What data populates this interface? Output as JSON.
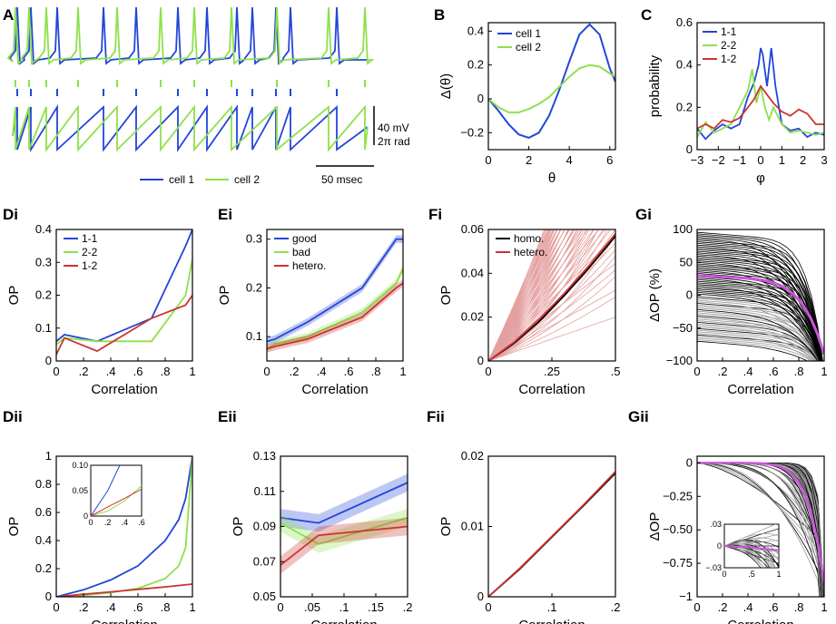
{
  "colors": {
    "blue": "#2346d8",
    "green": "#8ee04c",
    "red": "#cc3333",
    "black": "#000000",
    "gray": "#9a9a9a",
    "magenta": "#cc55dd",
    "pink": "#e4a0a0"
  },
  "chart_data": [
    {
      "panel": "A",
      "type": "line",
      "title": "",
      "series": [
        {
          "name": "cell 1",
          "color": "blue",
          "spike_times_ms": [
            5,
            20,
            49,
            100,
            136,
            182,
            214,
            247,
            264,
            290,
            306,
            357
          ]
        },
        {
          "name": "cell 2",
          "color": "green",
          "spike_times_ms": [
            3,
            18,
            37,
            72,
            115,
            163,
            200,
            241,
            291,
            348,
            388
          ]
        }
      ],
      "scale": {
        "voltage": "40 mV",
        "phase": "2π rad",
        "time": "50 msec"
      }
    },
    {
      "panel": "B",
      "type": "line",
      "xlabel": "θ",
      "ylabel": "Δ(θ)",
      "xlim": [
        0,
        6.28
      ],
      "ylim": [
        -0.3,
        0.45
      ],
      "xticks": [
        "0",
        "2",
        "4",
        "6"
      ],
      "yticks": [
        "−0.2",
        "0",
        "0.2",
        "0.4"
      ],
      "series": [
        {
          "name": "cell 1",
          "color": "blue",
          "x": [
            0,
            0.5,
            1,
            1.5,
            2,
            2.5,
            3,
            3.5,
            4,
            4.5,
            5,
            5.5,
            6,
            6.28
          ],
          "y": [
            0,
            -0.07,
            -0.15,
            -0.21,
            -0.23,
            -0.2,
            -0.1,
            0.05,
            0.22,
            0.38,
            0.44,
            0.38,
            0.18,
            0.1
          ]
        },
        {
          "name": "cell 2",
          "color": "green",
          "x": [
            0,
            0.5,
            1,
            1.5,
            2,
            2.5,
            3,
            3.5,
            4,
            4.5,
            5,
            5.5,
            6,
            6.28
          ],
          "y": [
            0,
            -0.05,
            -0.08,
            -0.08,
            -0.06,
            -0.03,
            0.01,
            0.07,
            0.13,
            0.18,
            0.2,
            0.19,
            0.15,
            0.13
          ]
        }
      ]
    },
    {
      "panel": "C",
      "type": "line",
      "xlabel": "φ",
      "ylabel": "probability",
      "xlim": [
        -3,
        3
      ],
      "ylim": [
        0,
        0.6
      ],
      "xticks": [
        "−3",
        "−2",
        "−1",
        "0",
        "1",
        "2",
        "3"
      ],
      "yticks": [
        "0",
        "0.2",
        "0.4",
        "0.6"
      ],
      "series": [
        {
          "name": "1-1",
          "color": "blue",
          "x": [
            -3,
            -2.6,
            -2.2,
            -1.8,
            -1.4,
            -1,
            -0.6,
            -0.3,
            -0.1,
            0,
            0.1,
            0.3,
            0.5,
            0.7,
            1,
            1.4,
            1.8,
            2.2,
            2.6,
            3
          ],
          "y": [
            0.1,
            0.05,
            0.09,
            0.12,
            0.1,
            0.12,
            0.25,
            0.32,
            0.4,
            0.48,
            0.45,
            0.3,
            0.48,
            0.3,
            0.12,
            0.09,
            0.1,
            0.06,
            0.08,
            0.07
          ]
        },
        {
          "name": "2-2",
          "color": "green",
          "x": [
            -3,
            -2.6,
            -2.2,
            -1.8,
            -1.4,
            -1,
            -0.6,
            -0.4,
            -0.2,
            0,
            0.2,
            0.4,
            0.6,
            1,
            1.4,
            1.8,
            2.2,
            2.6,
            3
          ],
          "y": [
            0.06,
            0.13,
            0.08,
            0.1,
            0.12,
            0.2,
            0.28,
            0.38,
            0.22,
            0.3,
            0.2,
            0.14,
            0.2,
            0.12,
            0.08,
            0.09,
            0.08,
            0.07,
            0.08
          ]
        },
        {
          "name": "1-2",
          "color": "red",
          "x": [
            -3,
            -2.6,
            -2.2,
            -1.8,
            -1.4,
            -1,
            -0.6,
            -0.3,
            0,
            0.3,
            0.6,
            1,
            1.4,
            1.8,
            2.2,
            2.6,
            3
          ],
          "y": [
            0.1,
            0.12,
            0.1,
            0.14,
            0.13,
            0.15,
            0.2,
            0.24,
            0.3,
            0.26,
            0.22,
            0.18,
            0.16,
            0.19,
            0.17,
            0.12,
            0.12
          ]
        }
      ]
    },
    {
      "panel": "Di",
      "type": "line",
      "xlabel": "Correlation",
      "ylabel": "OP",
      "xlim": [
        0,
        1
      ],
      "ylim": [
        0,
        0.4
      ],
      "xticks": [
        "0",
        ".2",
        ".4",
        ".6",
        ".8",
        "1"
      ],
      "yticks": [
        "0",
        "0.1",
        "0.2",
        "0.3",
        "0.4"
      ],
      "series": [
        {
          "name": "1-1",
          "color": "blue",
          "x": [
            0,
            0.06,
            0.3,
            0.7,
            0.95,
            1
          ],
          "y": [
            0.06,
            0.08,
            0.06,
            0.13,
            0.35,
            0.4
          ]
        },
        {
          "name": "2-2",
          "color": "green",
          "x": [
            0,
            0.06,
            0.3,
            0.7,
            0.95,
            1
          ],
          "y": [
            0.05,
            0.07,
            0.06,
            0.06,
            0.2,
            0.31
          ]
        },
        {
          "name": "1-2",
          "color": "red",
          "x": [
            0,
            0.06,
            0.3,
            0.7,
            0.95,
            1
          ],
          "y": [
            0.02,
            0.07,
            0.03,
            0.13,
            0.17,
            0.2
          ]
        }
      ]
    },
    {
      "panel": "Ei",
      "type": "line",
      "xlabel": "Correlation",
      "ylabel": "OP",
      "xlim": [
        0,
        1
      ],
      "ylim": [
        0.05,
        0.32
      ],
      "xticks": [
        "0",
        ".2",
        ".4",
        ".6",
        ".8",
        "1"
      ],
      "yticks": [
        "0.1",
        "0.2",
        "0.3"
      ],
      "series": [
        {
          "name": "good",
          "color": "blue",
          "x": [
            0,
            0.06,
            0.3,
            0.7,
            0.95,
            1
          ],
          "y": [
            0.09,
            0.095,
            0.13,
            0.2,
            0.3,
            0.3
          ]
        },
        {
          "name": "bad",
          "color": "green",
          "x": [
            0,
            0.06,
            0.3,
            0.7,
            0.95,
            1
          ],
          "y": [
            0.075,
            0.085,
            0.1,
            0.15,
            0.21,
            0.24
          ]
        },
        {
          "name": "hetero.",
          "color": "red",
          "x": [
            0,
            0.06,
            0.3,
            0.7,
            0.95,
            1
          ],
          "y": [
            0.075,
            0.08,
            0.095,
            0.14,
            0.2,
            0.21
          ]
        }
      ]
    },
    {
      "panel": "Fi",
      "type": "line",
      "xlabel": "Correlation",
      "ylabel": "OP",
      "xlim": [
        0,
        0.5
      ],
      "ylim": [
        0,
        0.06
      ],
      "xticks": [
        "0",
        ".25",
        ".5"
      ],
      "yticks": [
        "0",
        "0.02",
        "0.04",
        "0.06"
      ],
      "series": [
        {
          "name": "homo.",
          "color": "black",
          "x": [
            0,
            0.1,
            0.2,
            0.3,
            0.4,
            0.5
          ],
          "y": [
            0,
            0.008,
            0.018,
            0.03,
            0.043,
            0.057
          ]
        },
        {
          "name": "hetero.",
          "color": "red",
          "x": [
            0,
            0.1,
            0.2,
            0.3,
            0.4,
            0.5
          ],
          "y": [
            0,
            0.0085,
            0.019,
            0.031,
            0.044,
            0.058
          ]
        }
      ]
    },
    {
      "panel": "Gi",
      "type": "line",
      "xlabel": "Correlation",
      "ylabel": "ΔOP (%)",
      "xlim": [
        0,
        1
      ],
      "ylim": [
        -100,
        100
      ],
      "xticks": [
        "0",
        ".2",
        ".4",
        ".6",
        ".8",
        "1"
      ],
      "yticks": [
        "−100",
        "−50",
        "0",
        "50",
        "100"
      ]
    },
    {
      "panel": "Dii",
      "type": "line",
      "xlabel": "Correlation",
      "ylabel": "OP",
      "xlim": [
        0,
        1
      ],
      "ylim": [
        0,
        1
      ],
      "xticks": [
        "0",
        ".2",
        ".4",
        ".6",
        ".8",
        "1"
      ],
      "yticks": [
        "0",
        "0.2",
        "0.4",
        "0.6",
        "0.8",
        "1"
      ],
      "inset": {
        "xticks": [
          "0",
          ".2",
          ".4",
          ".6"
        ],
        "yticks": [
          "0",
          "0.05",
          "0.10"
        ],
        "xlim": [
          0,
          0.6
        ],
        "ylim": [
          0,
          0.1
        ]
      },
      "series": [
        {
          "name": "1-1",
          "color": "blue",
          "x": [
            0,
            0.2,
            0.4,
            0.6,
            0.8,
            0.9,
            0.95,
            1
          ],
          "y": [
            0,
            0.05,
            0.12,
            0.22,
            0.4,
            0.55,
            0.7,
            1
          ]
        },
        {
          "name": "2-2",
          "color": "green",
          "x": [
            0,
            0.2,
            0.4,
            0.6,
            0.8,
            0.9,
            0.95,
            1
          ],
          "y": [
            0,
            0.01,
            0.03,
            0.06,
            0.13,
            0.22,
            0.35,
            1
          ]
        },
        {
          "name": "1-2",
          "color": "red",
          "x": [
            0,
            0.2,
            0.4,
            0.6,
            0.8,
            1
          ],
          "y": [
            0,
            0.018,
            0.035,
            0.053,
            0.07,
            0.09
          ]
        }
      ]
    },
    {
      "panel": "Eii",
      "type": "line",
      "xlabel": "Correlation",
      "ylabel": "OP",
      "xlim": [
        0,
        0.2
      ],
      "ylim": [
        0.05,
        0.13
      ],
      "xticks": [
        "0",
        ".05",
        ".1",
        ".15",
        ".2"
      ],
      "yticks": [
        "0.05",
        "0.07",
        "0.09",
        "0.11",
        "0.13"
      ],
      "series": [
        {
          "name": "good",
          "color": "blue",
          "x": [
            0,
            0.06,
            0.2
          ],
          "y": [
            0.095,
            0.092,
            0.115
          ]
        },
        {
          "name": "bad",
          "color": "green",
          "x": [
            0,
            0.06,
            0.2
          ],
          "y": [
            0.092,
            0.08,
            0.095
          ]
        },
        {
          "name": "hetero.",
          "color": "red",
          "x": [
            0,
            0.06,
            0.2
          ],
          "y": [
            0.068,
            0.085,
            0.09
          ]
        }
      ]
    },
    {
      "panel": "Fii",
      "type": "line",
      "xlabel": "Correlation",
      "ylabel": "OP",
      "xlim": [
        0,
        0.2
      ],
      "ylim": [
        0,
        0.02
      ],
      "xticks": [
        "0",
        ".1",
        ".2"
      ],
      "yticks": [
        "0",
        "0.01",
        "0.02"
      ],
      "series": [
        {
          "name": "homo.",
          "color": "black",
          "x": [
            0,
            0.05,
            0.1,
            0.15,
            0.2
          ],
          "y": [
            0,
            0.004,
            0.0085,
            0.013,
            0.0176
          ]
        },
        {
          "name": "hetero.",
          "color": "red",
          "x": [
            0,
            0.05,
            0.1,
            0.15,
            0.2
          ],
          "y": [
            0,
            0.0041,
            0.0086,
            0.0131,
            0.0178
          ]
        }
      ]
    },
    {
      "panel": "Gii",
      "type": "line",
      "xlabel": "Correlation",
      "ylabel": "ΔOP",
      "xlim": [
        0,
        1
      ],
      "ylim": [
        -1,
        0.05
      ],
      "xticks": [
        "0",
        ".2",
        ".4",
        ".6",
        ".8",
        "1"
      ],
      "yticks": [
        "−1",
        "−0.75",
        "−0.50",
        "−0.25",
        "0"
      ],
      "inset": {
        "xticks": [
          "0",
          ".5",
          "1"
        ],
        "yticks": [
          "−.03",
          "0",
          ".03"
        ],
        "xlim": [
          0,
          1
        ],
        "ylim": [
          -0.03,
          0.03
        ]
      }
    }
  ]
}
